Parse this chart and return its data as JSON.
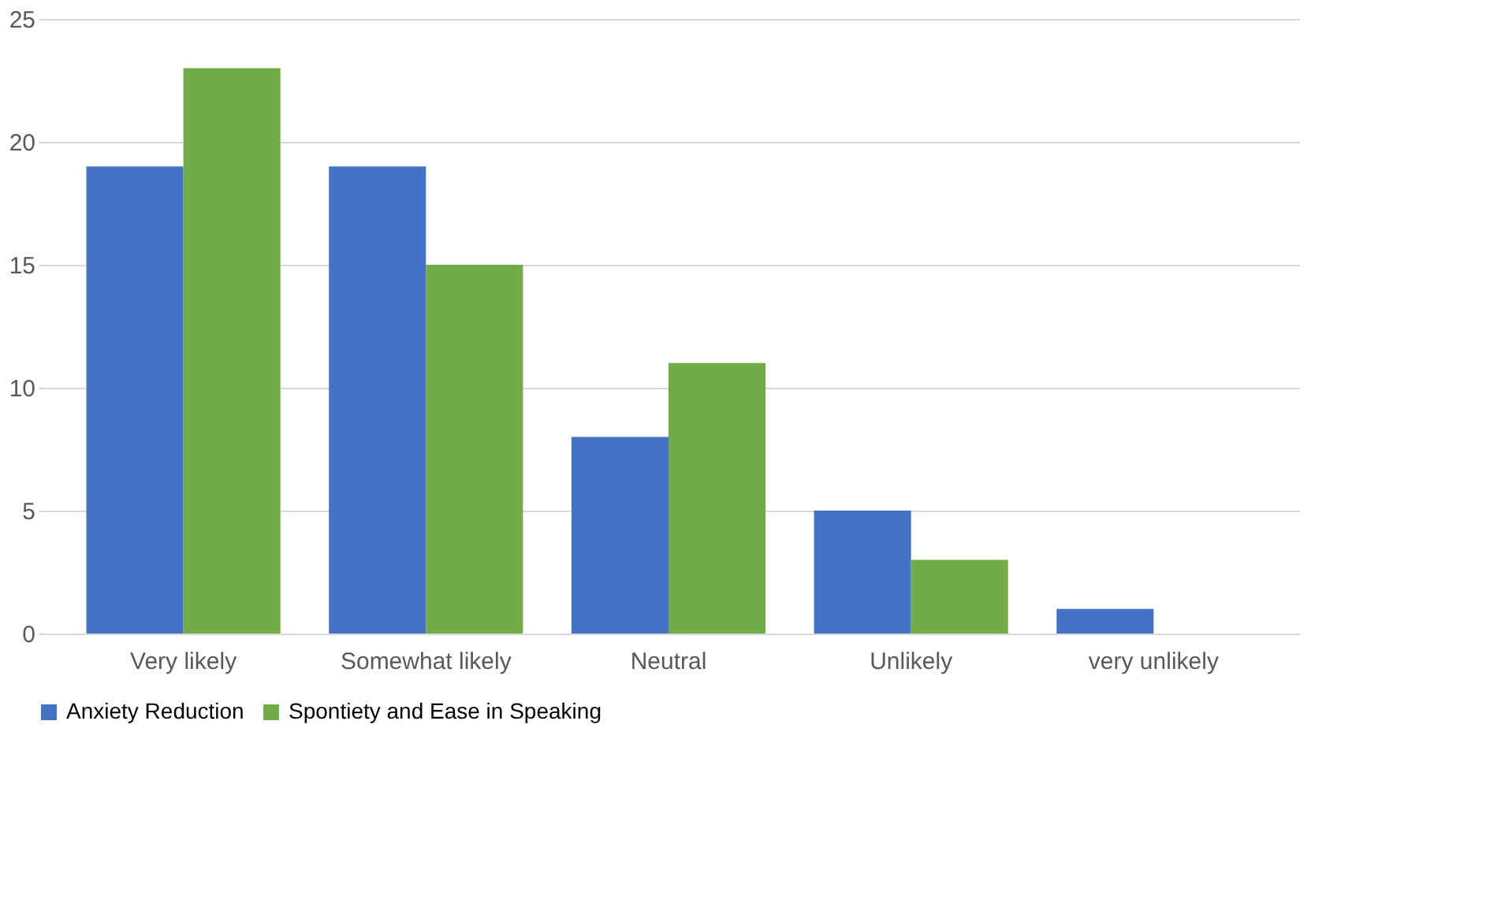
{
  "chart_data": {
    "type": "bar",
    "categories": [
      "Very likely",
      "Somewhat likely",
      "Neutral",
      "Unlikely",
      "very unlikely"
    ],
    "series": [
      {
        "name": "Anxiety Reduction",
        "color": "#4472c4",
        "values": [
          19,
          19,
          8,
          5,
          1
        ]
      },
      {
        "name": "Spontiety and Ease in Speaking",
        "color": "#70ad47",
        "values": [
          23,
          15,
          11,
          3,
          0
        ]
      }
    ],
    "ylim": [
      0,
      25
    ],
    "yticks": [
      0,
      5,
      10,
      15,
      20,
      25
    ],
    "grid": "y",
    "legend": "bottom"
  }
}
